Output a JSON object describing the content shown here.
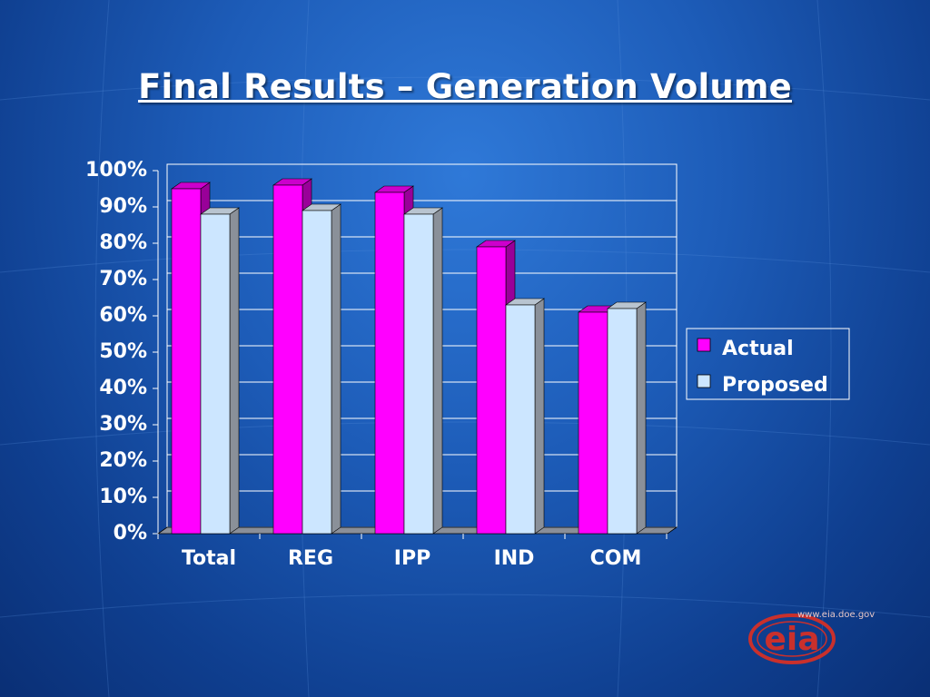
{
  "slide": {
    "title": "Final Results – Generation Volume"
  },
  "chart_data": {
    "type": "bar",
    "title": "",
    "categories": [
      "Total",
      "REG",
      "IPP",
      "IND",
      "COM"
    ],
    "series": [
      {
        "name": "Actual",
        "values": [
          95,
          96,
          94,
          79,
          61
        ],
        "color": "#ff00ff"
      },
      {
        "name": "Proposed",
        "values": [
          88,
          89,
          88,
          63,
          62
        ],
        "color": "#cce6ff"
      }
    ],
    "y_ticks": [
      "0%",
      "10%",
      "20%",
      "30%",
      "40%",
      "50%",
      "60%",
      "70%",
      "80%",
      "90%",
      "100%"
    ],
    "ylim": [
      0,
      100
    ],
    "y_unit": "%",
    "grid": true,
    "three_d": true,
    "legend_position": "right"
  },
  "logo": {
    "text": "eia",
    "url": "www.eia.doe.gov"
  },
  "colors": {
    "background": "#1d5cb8",
    "grid": "#ffffff",
    "actual": "#ff00ff",
    "proposed": "#cce6ff",
    "logo": "#c9302c"
  }
}
